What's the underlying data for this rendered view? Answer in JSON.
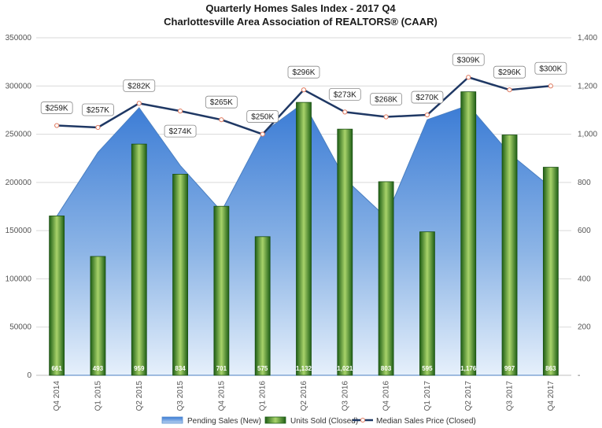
{
  "chart_data": {
    "type": "bar",
    "title": "Quarterly Homes Sales Index -  2017 Q4",
    "subtitle": "Charlottesville Area Association of REALTORS® (CAAR)",
    "categories": [
      "Q4 2014",
      "Q1 2015",
      "Q2 2015",
      "Q3 2015",
      "Q4 2015",
      "Q1 2016",
      "Q2 2016",
      "Q3 2016",
      "Q4 2016",
      "Q1 2017",
      "Q2 2017",
      "Q3 2017",
      "Q4 2017"
    ],
    "y_left": {
      "ylim": [
        0,
        350000
      ],
      "ticks": [
        "0",
        "50000",
        "100000",
        "150000",
        "200000",
        "250000",
        "300000",
        "350000"
      ]
    },
    "y_right": {
      "ylim": [
        0,
        1400
      ],
      "ticks": [
        "-",
        "200",
        "400",
        "600",
        "800",
        "1,000",
        "1,200",
        "1,400"
      ]
    },
    "series": [
      {
        "name": "Pending Sales (New)",
        "type": "area",
        "axis": "right",
        "color": "#4f86c6",
        "values": [
          660,
          925,
          1110,
          870,
          680,
          1005,
          1130,
          815,
          655,
          1060,
          1120,
          920,
          780
        ]
      },
      {
        "name": "Units Sold (Closed)",
        "type": "bar",
        "axis": "right",
        "color": "#2e7d1e",
        "values": [
          661,
          493,
          959,
          834,
          701,
          575,
          1132,
          1021,
          803,
          595,
          1176,
          997,
          863
        ],
        "labels": [
          "661",
          "493",
          "959",
          "834",
          "701",
          "575",
          "1,132",
          "1,021",
          "803",
          "595",
          "1,176",
          "997",
          "863"
        ]
      },
      {
        "name": "Median Sales Price (Closed)",
        "type": "line",
        "axis": "left",
        "color": "#1f3864",
        "values": [
          259000,
          257000,
          282000,
          274000,
          265000,
          250000,
          296000,
          273000,
          268000,
          270000,
          309000,
          296000,
          300000
        ],
        "labels": [
          "$259K",
          "$257K",
          "$282K",
          "$274K",
          "$265K",
          "$250K",
          "$296K",
          "$273K",
          "$268K",
          "$270K",
          "$309K",
          "$296K",
          "$300K"
        ]
      }
    ],
    "grid": true,
    "legend_position": "bottom"
  }
}
